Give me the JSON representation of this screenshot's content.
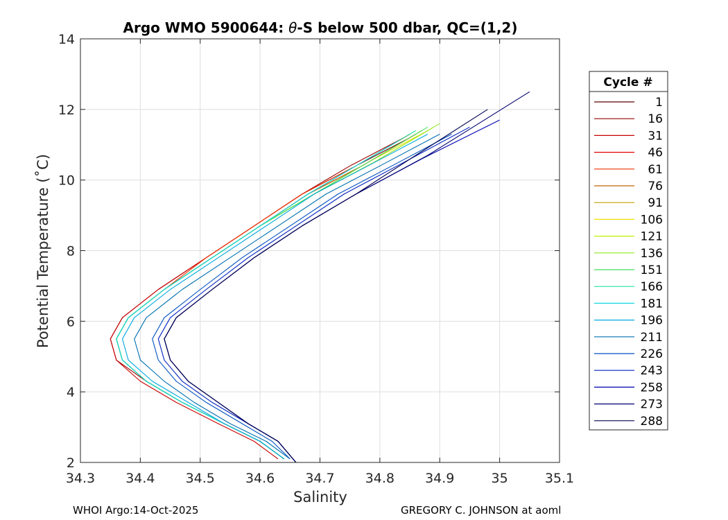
{
  "chart_data": {
    "type": "line",
    "title_prefix": "Argo WMO 5900644: ",
    "title_symbol": "θ",
    "title_suffix": "-S below 500 dbar,  QC=(1,2)",
    "xlabel": "Salinity",
    "ylabel": "Potential Temperature (˚C)",
    "xlim": [
      34.3,
      35.1
    ],
    "ylim": [
      2,
      14
    ],
    "xticks": [
      "34.3",
      "34.4",
      "34.5",
      "34.6",
      "34.7",
      "34.8",
      "34.9",
      "35",
      "35.1"
    ],
    "yticks": [
      "2",
      "4",
      "6",
      "8",
      "10",
      "12",
      "14"
    ],
    "grid": true,
    "legend": {
      "title": "Cycle #",
      "placement": "right",
      "entries": [
        {
          "label": "1",
          "color": "#5a0000"
        },
        {
          "label": "16",
          "color": "#9a0000"
        },
        {
          "label": "31",
          "color": "#c80000"
        },
        {
          "label": "46",
          "color": "#e00000"
        },
        {
          "label": "61",
          "color": "#ec3000"
        },
        {
          "label": "76",
          "color": "#c06000"
        },
        {
          "label": "91",
          "color": "#c0a000"
        },
        {
          "label": "106",
          "color": "#f0e000"
        },
        {
          "label": "121",
          "color": "#c0f000"
        },
        {
          "label": "136",
          "color": "#90e820"
        },
        {
          "label": "151",
          "color": "#40e060"
        },
        {
          "label": "166",
          "color": "#20e0a0"
        },
        {
          "label": "181",
          "color": "#10d8e0"
        },
        {
          "label": "196",
          "color": "#00a8e0"
        },
        {
          "label": "211",
          "color": "#0070b0"
        },
        {
          "label": "226",
          "color": "#0050c0"
        },
        {
          "label": "243",
          "color": "#0020c0"
        },
        {
          "label": "258",
          "color": "#0000b0"
        },
        {
          "label": "273",
          "color": "#000070"
        },
        {
          "label": "288",
          "color": "#000050"
        }
      ]
    },
    "series": [
      {
        "name": "1",
        "color": "#5a0000",
        "salinity": [
          34.64,
          34.6,
          34.54,
          34.47,
          34.41,
          34.37,
          34.36,
          34.38,
          34.44,
          34.52,
          34.6,
          34.68,
          34.76,
          34.85
        ],
        "theta": [
          2.1,
          2.6,
          3.1,
          3.7,
          4.3,
          4.9,
          5.5,
          6.1,
          6.9,
          7.8,
          8.7,
          9.6,
          10.4,
          11.2
        ]
      },
      {
        "name": "16",
        "color": "#9a0000",
        "salinity": [
          34.64,
          34.6,
          34.54,
          34.47,
          34.41,
          34.36,
          34.35,
          34.37,
          34.43,
          34.51,
          34.59,
          34.67,
          34.75,
          34.84
        ],
        "theta": [
          2.1,
          2.6,
          3.1,
          3.7,
          4.3,
          4.9,
          5.5,
          6.1,
          6.9,
          7.8,
          8.7,
          9.6,
          10.4,
          11.2
        ]
      },
      {
        "name": "31",
        "color": "#c80000",
        "salinity": [
          34.63,
          34.59,
          34.53,
          34.46,
          34.4,
          34.36,
          34.35,
          34.37,
          34.43,
          34.51,
          34.59,
          34.67,
          34.76,
          34.85
        ],
        "theta": [
          2.1,
          2.6,
          3.1,
          3.7,
          4.3,
          4.9,
          5.5,
          6.1,
          6.9,
          7.8,
          8.7,
          9.6,
          10.4,
          11.3
        ]
      },
      {
        "name": "46",
        "color": "#e00000",
        "salinity": [
          34.64,
          34.6,
          34.54,
          34.47,
          34.41,
          34.37,
          34.36,
          34.38,
          34.44,
          34.52,
          34.6,
          34.68,
          34.77,
          34.86
        ],
        "theta": [
          2.1,
          2.6,
          3.1,
          3.7,
          4.3,
          4.9,
          5.5,
          6.1,
          6.9,
          7.8,
          8.7,
          9.6,
          10.4,
          11.3
        ]
      },
      {
        "name": "61",
        "color": "#ec3000",
        "salinity": [
          34.64,
          34.6,
          34.54,
          34.47,
          34.41,
          34.37,
          34.36,
          34.38,
          34.44,
          34.51,
          34.59,
          34.67,
          34.76,
          34.85
        ],
        "theta": [
          2.1,
          2.6,
          3.1,
          3.7,
          4.3,
          4.9,
          5.5,
          6.1,
          6.9,
          7.8,
          8.7,
          9.6,
          10.4,
          11.3
        ]
      },
      {
        "name": "76",
        "color": "#c06000",
        "salinity": [
          34.64,
          34.6,
          34.54,
          34.47,
          34.41,
          34.37,
          34.36,
          34.38,
          34.44,
          34.52,
          34.6,
          34.68,
          34.77,
          34.86
        ],
        "theta": [
          2.1,
          2.6,
          3.1,
          3.7,
          4.3,
          4.9,
          5.5,
          6.1,
          6.9,
          7.8,
          8.7,
          9.6,
          10.4,
          11.3
        ]
      },
      {
        "name": "91",
        "color": "#c0a000",
        "salinity": [
          34.64,
          34.6,
          34.54,
          34.47,
          34.41,
          34.37,
          34.36,
          34.38,
          34.44,
          34.52,
          34.6,
          34.69,
          34.78,
          34.87
        ],
        "theta": [
          2.1,
          2.6,
          3.1,
          3.7,
          4.3,
          4.9,
          5.5,
          6.1,
          6.9,
          7.8,
          8.7,
          9.6,
          10.5,
          11.4
        ]
      },
      {
        "name": "106",
        "color": "#f0e000",
        "salinity": [
          34.64,
          34.6,
          34.54,
          34.47,
          34.41,
          34.37,
          34.36,
          34.38,
          34.44,
          34.52,
          34.6,
          34.69,
          34.78,
          34.88
        ],
        "theta": [
          2.1,
          2.6,
          3.1,
          3.7,
          4.3,
          4.9,
          5.5,
          6.1,
          6.9,
          7.8,
          8.7,
          9.6,
          10.5,
          11.4
        ]
      },
      {
        "name": "121",
        "color": "#c0f000",
        "salinity": [
          34.64,
          34.6,
          34.54,
          34.47,
          34.41,
          34.37,
          34.36,
          34.38,
          34.44,
          34.52,
          34.6,
          34.69,
          34.79,
          34.89
        ],
        "theta": [
          2.1,
          2.6,
          3.1,
          3.7,
          4.3,
          4.9,
          5.5,
          6.1,
          6.9,
          7.8,
          8.7,
          9.6,
          10.5,
          11.5
        ]
      },
      {
        "name": "136",
        "color": "#90e820",
        "salinity": [
          34.64,
          34.6,
          34.54,
          34.47,
          34.41,
          34.37,
          34.36,
          34.38,
          34.44,
          34.52,
          34.6,
          34.69,
          34.79,
          34.9
        ],
        "theta": [
          2.1,
          2.6,
          3.1,
          3.7,
          4.3,
          4.9,
          5.5,
          6.1,
          6.9,
          7.8,
          8.7,
          9.6,
          10.5,
          11.6
        ]
      },
      {
        "name": "151",
        "color": "#40e060",
        "salinity": [
          34.64,
          34.6,
          34.54,
          34.47,
          34.41,
          34.37,
          34.36,
          34.38,
          34.44,
          34.52,
          34.6,
          34.69,
          34.78,
          34.88
        ],
        "theta": [
          2.1,
          2.6,
          3.1,
          3.7,
          4.3,
          4.9,
          5.5,
          6.1,
          6.9,
          7.8,
          8.7,
          9.6,
          10.5,
          11.5
        ]
      },
      {
        "name": "166",
        "color": "#20e0a0",
        "salinity": [
          34.64,
          34.6,
          34.54,
          34.47,
          34.41,
          34.37,
          34.36,
          34.38,
          34.44,
          34.52,
          34.6,
          34.68,
          34.77,
          34.86
        ],
        "theta": [
          2.1,
          2.6,
          3.1,
          3.7,
          4.3,
          4.9,
          5.5,
          6.1,
          6.9,
          7.8,
          8.7,
          9.6,
          10.5,
          11.4
        ]
      },
      {
        "name": "181",
        "color": "#10d8e0",
        "salinity": [
          34.64,
          34.6,
          34.54,
          34.47,
          34.41,
          34.37,
          34.36,
          34.38,
          34.44,
          34.52,
          34.6,
          34.68,
          34.76,
          34.83
        ],
        "theta": [
          2.1,
          2.6,
          3.1,
          3.7,
          4.3,
          4.9,
          5.5,
          6.1,
          6.9,
          7.8,
          8.7,
          9.6,
          10.4,
          11.1
        ]
      },
      {
        "name": "196",
        "color": "#00a8e0",
        "salinity": [
          34.64,
          34.6,
          34.54,
          34.48,
          34.42,
          34.38,
          34.37,
          34.39,
          34.45,
          34.53,
          34.61,
          34.69,
          34.78,
          34.88
        ],
        "theta": [
          2.1,
          2.6,
          3.1,
          3.7,
          4.3,
          4.9,
          5.5,
          6.1,
          6.9,
          7.8,
          8.7,
          9.6,
          10.4,
          11.3
        ]
      },
      {
        "name": "211",
        "color": "#0070b0",
        "salinity": [
          34.65,
          34.61,
          34.55,
          34.49,
          34.44,
          34.4,
          34.39,
          34.41,
          34.47,
          34.55,
          34.63,
          34.71,
          34.8,
          34.9
        ],
        "theta": [
          2.1,
          2.6,
          3.1,
          3.7,
          4.3,
          4.9,
          5.5,
          6.1,
          6.9,
          7.8,
          8.7,
          9.6,
          10.4,
          11.3
        ]
      },
      {
        "name": "226",
        "color": "#0050c0",
        "salinity": [
          34.65,
          34.62,
          34.57,
          34.51,
          34.46,
          34.43,
          34.42,
          34.44,
          34.5,
          34.57,
          34.65,
          34.73,
          34.82,
          34.92
        ],
        "theta": [
          2.1,
          2.6,
          3.1,
          3.7,
          4.3,
          4.9,
          5.5,
          6.1,
          6.9,
          7.8,
          8.7,
          9.6,
          10.4,
          11.3
        ]
      },
      {
        "name": "243",
        "color": "#0020c0",
        "salinity": [
          34.66,
          34.63,
          34.58,
          34.52,
          34.47,
          34.44,
          34.43,
          34.45,
          34.51,
          34.58,
          34.66,
          34.74,
          34.84,
          34.95
        ],
        "theta": [
          2.0,
          2.6,
          3.1,
          3.7,
          4.3,
          4.9,
          5.5,
          6.1,
          6.9,
          7.8,
          8.7,
          9.6,
          10.5,
          11.5
        ]
      },
      {
        "name": "258",
        "color": "#0000b0",
        "salinity": [
          34.66,
          34.63,
          34.58,
          34.53,
          34.48,
          34.45,
          34.44,
          34.46,
          34.52,
          34.59,
          34.67,
          34.76,
          34.87,
          35.0
        ],
        "theta": [
          2.0,
          2.6,
          3.1,
          3.7,
          4.3,
          4.9,
          5.5,
          6.1,
          6.9,
          7.8,
          8.7,
          9.6,
          10.6,
          11.7
        ]
      },
      {
        "name": "273",
        "color": "#000070",
        "salinity": [
          34.66,
          34.63,
          34.58,
          34.53,
          34.48,
          34.45,
          34.44,
          34.46,
          34.52,
          34.59,
          34.67,
          34.76,
          34.88,
          35.05
        ],
        "theta": [
          2.0,
          2.6,
          3.1,
          3.7,
          4.3,
          4.9,
          5.5,
          6.1,
          6.9,
          7.8,
          8.7,
          9.6,
          10.7,
          12.5
        ]
      },
      {
        "name": "288",
        "color": "#000050",
        "salinity": [
          34.66,
          34.63,
          34.58,
          34.53,
          34.48,
          34.45,
          34.44,
          34.46,
          34.52,
          34.59,
          34.67,
          34.76,
          34.86,
          34.98
        ],
        "theta": [
          2.0,
          2.6,
          3.1,
          3.7,
          4.3,
          4.9,
          5.5,
          6.1,
          6.9,
          7.8,
          8.7,
          9.6,
          10.7,
          12.0
        ]
      }
    ]
  },
  "footer": {
    "left": "WHOI Argo:14-Oct-2025",
    "right": "GREGORY C. JOHNSON at aoml"
  }
}
